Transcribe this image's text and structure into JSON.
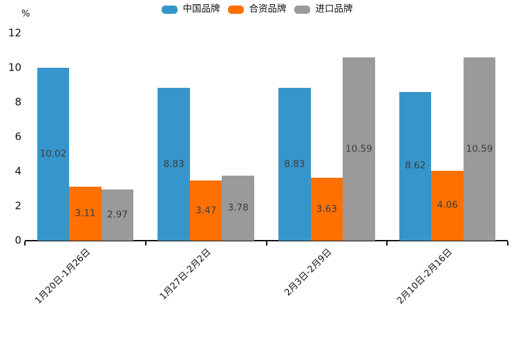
{
  "chart_data": {
    "type": "bar",
    "title": "",
    "unit_label": "%",
    "categories": [
      "1月20日-1月26日",
      "1月27日-2月2日",
      "2月3日-2月9日",
      "2月10日-2月16日"
    ],
    "series": [
      {
        "name": "中国品牌",
        "color": "#3696CB",
        "values": [
          10.02,
          8.83,
          8.83,
          8.62
        ]
      },
      {
        "name": "合资品牌",
        "color": "#FF7001",
        "values": [
          3.11,
          3.47,
          3.63,
          4.06
        ]
      },
      {
        "name": "进口品牌",
        "color": "#9A9A9A",
        "values": [
          2.97,
          3.78,
          10.59,
          10.59
        ]
      }
    ],
    "y_axis": {
      "min": 0,
      "max": 12,
      "ticks": [
        0,
        2,
        4,
        6,
        8,
        10,
        12
      ]
    },
    "legend_position": "top-center",
    "grid": false,
    "value_labels": "inside-center",
    "value_label_color": "#3c3c3c",
    "axis_color": "#111111",
    "background_color": "#ffffff"
  }
}
